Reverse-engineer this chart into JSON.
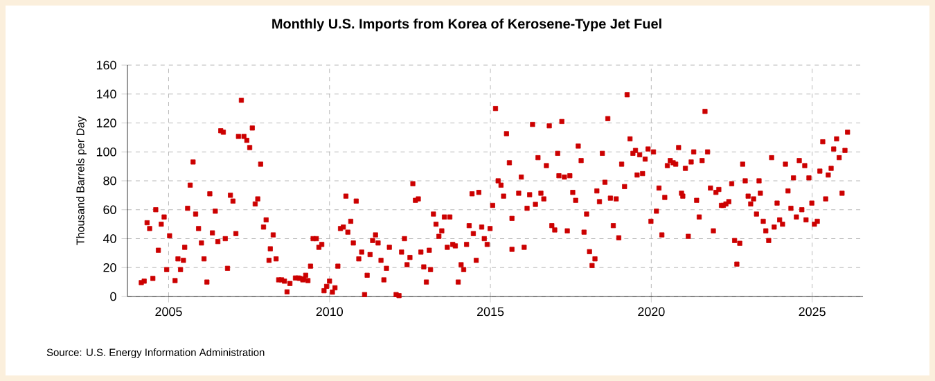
{
  "chart_data": {
    "type": "scatter",
    "title": "Monthly U.S. Imports from Korea of Kerosene-Type Jet Fuel",
    "ylabel": "Thousand Barrels per Day",
    "annotations": [
      "Source: U.S. Energy Information Administration"
    ],
    "xlim": [
      2003.72,
      2026.58
    ],
    "ylim": [
      0,
      160
    ],
    "xticks": [
      2005,
      2010,
      2015,
      2020,
      2025
    ],
    "yticks": [
      0,
      20,
      40,
      60,
      80,
      100,
      120,
      140,
      160
    ],
    "grid": true,
    "marker": "square",
    "color": "#cc0000",
    "x": [
      2004.15,
      2004.24,
      2004.33,
      2004.41,
      2004.51,
      2004.6,
      2004.68,
      2004.77,
      2004.86,
      2004.94,
      2005.03,
      2005.2,
      2005.29,
      2005.37,
      2005.46,
      2005.5,
      2005.59,
      2005.67,
      2005.76,
      2005.84,
      2005.93,
      2006.02,
      2006.1,
      2006.19,
      2006.28,
      2006.36,
      2006.45,
      2006.53,
      2006.62,
      2006.7,
      2006.76,
      2006.83,
      2006.92,
      2007.0,
      2007.09,
      2007.17,
      2007.26,
      2007.34,
      2007.43,
      2007.52,
      2007.6,
      2007.69,
      2007.77,
      2007.86,
      2007.95,
      2008.03,
      2008.12,
      2008.16,
      2008.25,
      2008.34,
      2008.42,
      2008.51,
      2008.6,
      2008.68,
      2008.77,
      2008.94,
      2009.03,
      2009.2,
      2009.07,
      2009.17,
      2009.26,
      2009.33,
      2009.41,
      2009.49,
      2009.59,
      2009.67,
      2009.76,
      2009.83,
      2009.91,
      2010.0,
      2010.09,
      2010.17,
      2010.26,
      2010.34,
      2010.43,
      2010.51,
      2010.57,
      2010.66,
      2010.74,
      2010.83,
      2010.91,
      2011.0,
      2011.09,
      2011.17,
      2011.26,
      2011.34,
      2011.43,
      2011.51,
      2011.6,
      2011.69,
      2011.77,
      2011.86,
      2012.07,
      2012.16,
      2012.24,
      2012.33,
      2012.41,
      2012.5,
      2012.59,
      2012.67,
      2012.76,
      2012.84,
      2012.93,
      2013.01,
      2013.1,
      2013.14,
      2013.23,
      2013.31,
      2013.4,
      2013.49,
      2013.57,
      2013.66,
      2013.74,
      2013.83,
      2013.91,
      2014.0,
      2014.09,
      2014.17,
      2014.26,
      2014.34,
      2014.43,
      2014.47,
      2014.56,
      2014.64,
      2014.73,
      2014.81,
      2014.9,
      2014.99,
      2015.07,
      2015.16,
      2015.24,
      2015.33,
      2015.41,
      2015.5,
      2015.59,
      2015.67,
      2015.67,
      2015.88,
      2015.96,
      2016.05,
      2016.14,
      2016.22,
      2016.31,
      2016.4,
      2016.48,
      2016.57,
      2016.66,
      2016.74,
      2016.83,
      2016.91,
      2017.0,
      2017.09,
      2017.13,
      2017.22,
      2017.3,
      2017.39,
      2017.47,
      2017.56,
      2017.65,
      2017.73,
      2017.82,
      2017.91,
      2017.99,
      2018.08,
      2018.16,
      2018.25,
      2018.31,
      2018.39,
      2018.48,
      2018.56,
      2018.65,
      2018.73,
      2018.82,
      2018.91,
      2018.99,
      2019.08,
      2019.17,
      2019.25,
      2019.34,
      2019.43,
      2019.51,
      2019.56,
      2019.64,
      2019.73,
      2019.81,
      2019.9,
      2019.99,
      2020.07,
      2020.16,
      2020.24,
      2020.33,
      2020.42,
      2020.5,
      2020.59,
      2020.68,
      2020.76,
      2020.85,
      2020.94,
      2020.98,
      2021.06,
      2021.15,
      2021.24,
      2021.32,
      2021.41,
      2021.49,
      2021.58,
      2021.67,
      2021.75,
      2021.84,
      2021.93,
      2022.01,
      2022.1,
      2022.18,
      2022.24,
      2022.32,
      2022.41,
      2022.5,
      2022.59,
      2022.66,
      2022.75,
      2022.84,
      2022.92,
      2023.01,
      2023.09,
      2023.18,
      2023.27,
      2023.35,
      2023.39,
      2023.48,
      2023.56,
      2023.65,
      2023.74,
      2023.82,
      2023.91,
      2023.99,
      2024.08,
      2024.17,
      2024.25,
      2024.34,
      2024.42,
      2024.51,
      2024.6,
      2024.68,
      2024.77,
      2024.81,
      2024.9,
      2024.99,
      2025.07,
      2025.16,
      2025.24,
      2025.33,
      2025.42,
      2025.5,
      2025.59,
      2025.67,
      2025.76,
      2025.84,
      2025.93,
      2026.02,
      2026.1
    ],
    "values": [
      9.6,
      10.6,
      51,
      47,
      12.5,
      60,
      32,
      50,
      55,
      18.6,
      42,
      11,
      26,
      18.6,
      25,
      34,
      61,
      77,
      93,
      57,
      47,
      37,
      26,
      10,
      71,
      44,
      59,
      38,
      114.6,
      113.6,
      40,
      19.5,
      70,
      66,
      43.5,
      110.7,
      135.7,
      110.7,
      108,
      103,
      116.5,
      64,
      67.5,
      91.5,
      48,
      53,
      25,
      33,
      42.6,
      26,
      11.5,
      11.5,
      10.6,
      3.2,
      9,
      12.8,
      12.8,
      12.2,
      12.5,
      11.5,
      14.7,
      11,
      21,
      40,
      40,
      34,
      36,
      4,
      7,
      10.6,
      3,
      6,
      21,
      47,
      48,
      69.4,
      44.5,
      52,
      37,
      66,
      26,
      30.7,
      1.3,
      14.7,
      29,
      38.7,
      42.6,
      37,
      25,
      11.5,
      19.5,
      34,
      1.3,
      0.6,
      30.7,
      40,
      22,
      27,
      78,
      66.5,
      67.5,
      30.7,
      20.5,
      10,
      32,
      18.6,
      57,
      50,
      41.6,
      45.4,
      55,
      34,
      55,
      36,
      35,
      10,
      22,
      18.6,
      36,
      49,
      71,
      43.5,
      25,
      72,
      48,
      40,
      36,
      47,
      63,
      130,
      80,
      77,
      69.4,
      112.6,
      92.5,
      54,
      32.6,
      71.4,
      82.6,
      34,
      61,
      70.4,
      119,
      63.7,
      96,
      71.4,
      67.5,
      90.5,
      118,
      49,
      46,
      99,
      83.5,
      121,
      82.6,
      45.4,
      83.5,
      72,
      66.5,
      104,
      94,
      44.5,
      57,
      31,
      21.4,
      26,
      73,
      65.6,
      99,
      79,
      123,
      68,
      49,
      67.5,
      40.6,
      91.5,
      76,
      139.5,
      109,
      99,
      101,
      84,
      98,
      85,
      95,
      102,
      52,
      100,
      59,
      75,
      42.6,
      68.5,
      90.5,
      94,
      92.5,
      91.5,
      103,
      71.4,
      69.4,
      88.6,
      41.6,
      93,
      100,
      66.5,
      55,
      94,
      128,
      100,
      75,
      45.4,
      72,
      74,
      63,
      63,
      64,
      65.6,
      78,
      38.7,
      22.4,
      36.8,
      91.5,
      80,
      69.4,
      64,
      67.5,
      57,
      80,
      71.4,
      52,
      45.4,
      38.7,
      96,
      48,
      64.6,
      53,
      50,
      91.5,
      73,
      61,
      82,
      55,
      94,
      60,
      90.5,
      53,
      82,
      64.6,
      50,
      52,
      86.7,
      107,
      67.5,
      84,
      88.6,
      102,
      109,
      96,
      71.4,
      101,
      113.6
    ]
  }
}
